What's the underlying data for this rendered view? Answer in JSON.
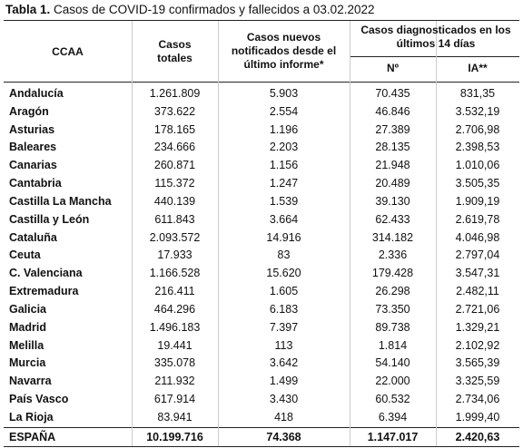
{
  "title": {
    "label": "Tabla 1.",
    "text": "Casos de COVID-19 confirmados y fallecidos a 03.02.2022"
  },
  "table": {
    "headers": [
      "CCAA",
      "Casos totales",
      "Casos nuevos notificados desde el último informe*",
      "Casos diagnosticados en los últimos 14 días",
      "Nº",
      "IA**"
    ],
    "rows": [
      [
        "Andalucía",
        "1.261.809",
        "5.903",
        "70.435",
        "831,35"
      ],
      [
        "Aragón",
        "373.622",
        "2.554",
        "46.846",
        "3.532,19"
      ],
      [
        "Asturias",
        "178.165",
        "1.196",
        "27.389",
        "2.706,98"
      ],
      [
        "Baleares",
        "234.666",
        "2.203",
        "28.135",
        "2.398,53"
      ],
      [
        "Canarias",
        "260.871",
        "1.156",
        "21.948",
        "1.010,06"
      ],
      [
        "Cantabria",
        "115.372",
        "1.247",
        "20.489",
        "3.505,35"
      ],
      [
        "Castilla La Mancha",
        "440.139",
        "1.539",
        "39.130",
        "1.909,19"
      ],
      [
        "Castilla y León",
        "611.843",
        "3.664",
        "62.433",
        "2.619,78"
      ],
      [
        "Cataluña",
        "2.093.572",
        "14.916",
        "314.182",
        "4.046,98"
      ],
      [
        "Ceuta",
        "17.933",
        "83",
        "2.336",
        "2.797,04"
      ],
      [
        "C. Valenciana",
        "1.166.528",
        "15.620",
        "179.428",
        "3.547,31"
      ],
      [
        "Extremadura",
        "216.411",
        "1.605",
        "26.298",
        "2.482,11"
      ],
      [
        "Galicia",
        "464.296",
        "6.183",
        "73.350",
        "2.721,06"
      ],
      [
        "Madrid",
        "1.496.183",
        "7.397",
        "89.738",
        "1.329,21"
      ],
      [
        "Melilla",
        "19.441",
        "113",
        "1.814",
        "2.102,92"
      ],
      [
        "Murcia",
        "335.078",
        "3.642",
        "54.140",
        "3.565,39"
      ],
      [
        "Navarra",
        "211.932",
        "1.499",
        "22.000",
        "3.325,59"
      ],
      [
        "País Vasco",
        "617.914",
        "3.430",
        "60.532",
        "2.734,06"
      ],
      [
        "La Rioja",
        "83.941",
        "418",
        "6.394",
        "1.999,40"
      ]
    ],
    "total": [
      "ESPAÑA",
      "10.199.716",
      "74.368",
      "1.147.017",
      "2.420,63"
    ]
  }
}
